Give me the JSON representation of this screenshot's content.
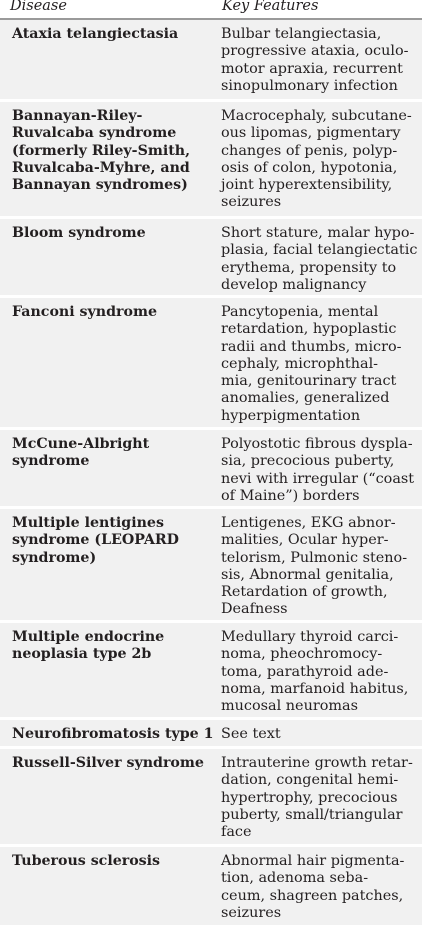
{
  "header": {
    "disease": "Disease",
    "features": "Key Features"
  },
  "rows": [
    {
      "disease": "Ataxia telangiectasia",
      "features": "Bulbar telangiectasia,\nprogressive ataxia, oculo-\nmotor apraxia, recurrent\nsinopulmonary infection"
    },
    {
      "disease": "Bannayan-Riley-\nRuvalcaba syndrome\n(formerly Riley-Smith,\nRuvalcaba-Myhre, and\nBannayan syndromes)",
      "features": "Macrocephaly, subcutane-\nous lipomas, pigmentary\nchanges of penis, polyp-\nosis of colon, hypotonia,\njoint hyperextensibility,\nseizures"
    },
    {
      "disease": "Bloom syndrome",
      "features": "Short stature, malar hypo-\nplasia, facial telangiectatic\nerythema, propensity to\ndevelop malignancy"
    },
    {
      "disease": "Fanconi syndrome",
      "features": "Pancytopenia, mental\nretardation, hypoplastic\nradii and thumbs, micro-\ncephaly, microphthal-\nmia, genitourinary tract\nanomalies, generalized\nhyperpigmentation"
    },
    {
      "disease": "McCune-Albright\n syndrome",
      "features": "Polyostotic fibrous dyspla-\nsia, precocious puberty,\nnevi with irregular (“coast\nof Maine”) borders"
    },
    {
      "disease": "Multiple lentigines\n syndrome (LEOPARD\n syndrome)",
      "features": "Lentigenes, EKG abnor-\nmalities, Ocular hyper-\ntelorism, Pulmonic steno-\nsis, Abnormal genitalia,\nRetardation of growth,\nDeafness"
    },
    {
      "disease": "Multiple endocrine\n neoplasia type 2b",
      "features": "Medullary thyroid carci-\nnoma, pheochromocy-\ntoma, parathyroid ade-\nnoma, marfanoid habitus,\nmucosal neuromas"
    },
    {
      "disease": "Neurofibromatosis type 1",
      "features": "See text"
    },
    {
      "disease": "Russell-Silver syndrome",
      "features": "Intrauterine growth retar-\ndation, congenital hemi-\nhypertrophy, precocious\npuberty, small/triangular\nface"
    },
    {
      "disease": "Tuberous sclerosis",
      "features": "Abnormal hair pigmenta-\ntion, adenoma seba-\nceum, shagreen patches,\nseizures"
    }
  ]
}
